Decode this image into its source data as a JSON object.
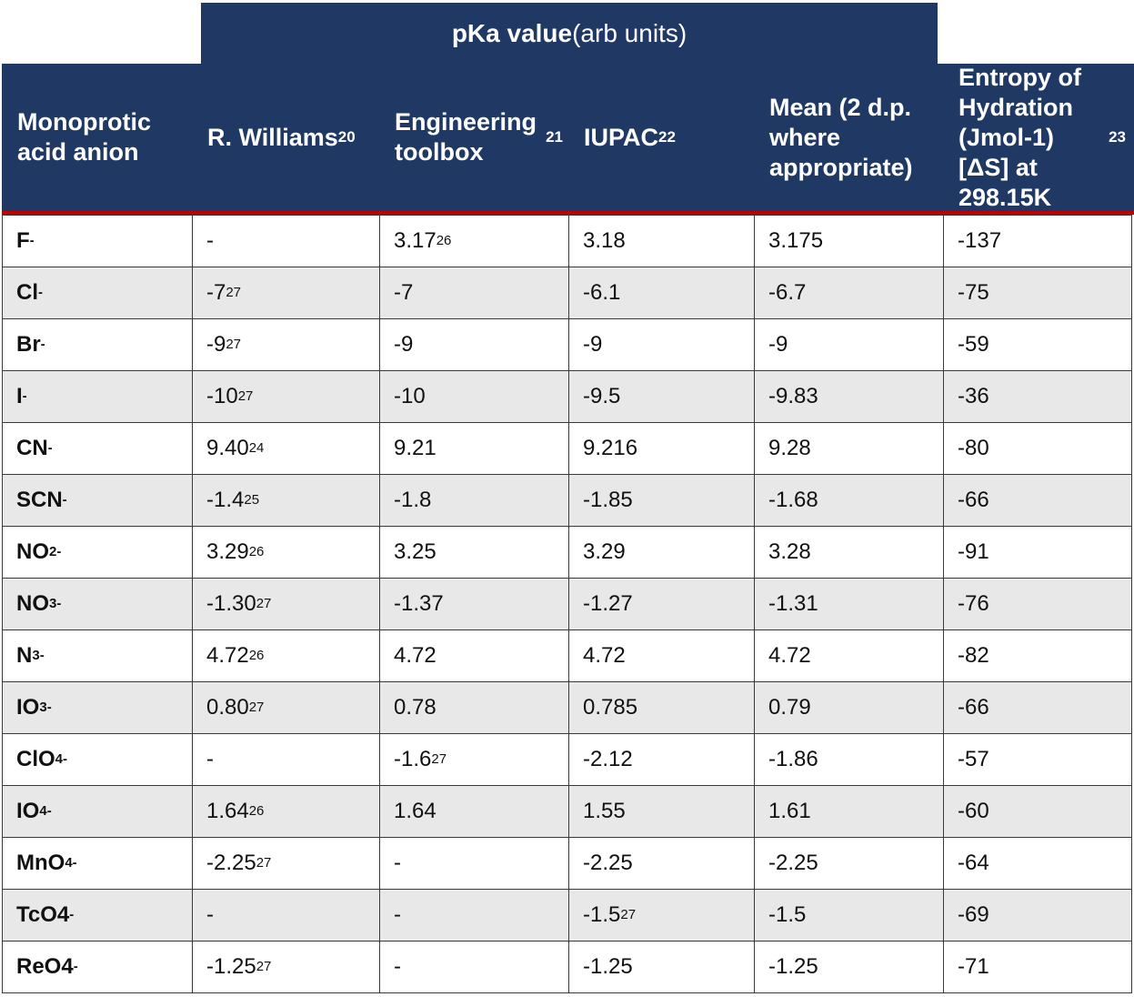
{
  "table": {
    "group_header": [
      {
        "bold": "pKa value"
      },
      " (arb units)"
    ],
    "columns": [
      [
        "Monoprotic acid anion"
      ],
      [
        "R. Williams",
        {
          "sup": "20"
        }
      ],
      [
        "Engineering toolbox",
        {
          "sup": "21"
        }
      ],
      [
        "IUPAC",
        {
          "sup": "22"
        }
      ],
      [
        "Mean (2 d.p. where appropriate)"
      ],
      [
        "Entropy of Hydration (Jmol-1) [ΔS] at 298.15K",
        {
          "sup": "23"
        }
      ]
    ],
    "rows": [
      [
        [
          "F",
          {
            "sup": "-"
          }
        ],
        [
          "-"
        ],
        [
          "3.17",
          {
            "sup": "26"
          }
        ],
        [
          "3.18"
        ],
        [
          "3.175"
        ],
        [
          "-137"
        ]
      ],
      [
        [
          "Cl",
          {
            "sup": "-"
          }
        ],
        [
          "-7",
          {
            "sup": "27"
          }
        ],
        [
          "-7"
        ],
        [
          "-6.1"
        ],
        [
          "-6.7"
        ],
        [
          "-75"
        ]
      ],
      [
        [
          "Br",
          {
            "sup": "-"
          }
        ],
        [
          "-9",
          {
            "sup": "27"
          }
        ],
        [
          "-9"
        ],
        [
          "-9"
        ],
        [
          "-9"
        ],
        [
          "-59"
        ]
      ],
      [
        [
          "I",
          {
            "sup": "-"
          }
        ],
        [
          "-10",
          {
            "sup": "27"
          }
        ],
        [
          "-10"
        ],
        [
          "-9.5"
        ],
        [
          "-9.83"
        ],
        [
          "-36"
        ]
      ],
      [
        [
          "CN",
          {
            "sup": "-"
          }
        ],
        [
          "9.40",
          {
            "sup": "24"
          }
        ],
        [
          "9.21"
        ],
        [
          "9.216"
        ],
        [
          "9.28"
        ],
        [
          "-80"
        ]
      ],
      [
        [
          "SCN",
          {
            "sup": "-"
          }
        ],
        [
          "-1.4",
          {
            "sup": "25"
          }
        ],
        [
          "-1.8"
        ],
        [
          "-1.85"
        ],
        [
          "-1.68"
        ],
        [
          "-66"
        ]
      ],
      [
        [
          "NO",
          {
            "sub": "2"
          },
          {
            "sup": "-"
          }
        ],
        [
          "3.29",
          {
            "sup": "26"
          }
        ],
        [
          "3.25"
        ],
        [
          "3.29"
        ],
        [
          "3.28"
        ],
        [
          "-91"
        ]
      ],
      [
        [
          "NO",
          {
            "sub": "3"
          },
          {
            "sup": "-"
          }
        ],
        [
          "-1.30",
          {
            "sup": "27"
          }
        ],
        [
          "-1.37"
        ],
        [
          "-1.27"
        ],
        [
          "-1.31"
        ],
        [
          "-76"
        ]
      ],
      [
        [
          "N",
          {
            "sub": "3"
          },
          {
            "sup": "-"
          }
        ],
        [
          "4.72",
          {
            "sup": "26"
          }
        ],
        [
          "4.72"
        ],
        [
          "4.72"
        ],
        [
          "4.72"
        ],
        [
          "-82"
        ]
      ],
      [
        [
          "IO",
          {
            "sub": "3"
          },
          {
            "sup": "-"
          }
        ],
        [
          "0.80",
          {
            "sup": "27"
          }
        ],
        [
          "0.78"
        ],
        [
          "0.785"
        ],
        [
          "0.79"
        ],
        [
          "-66"
        ]
      ],
      [
        [
          "ClO",
          {
            "sub": "4"
          },
          {
            "sup": "-"
          }
        ],
        [
          "-"
        ],
        [
          "-1.6",
          {
            "sup": "27"
          }
        ],
        [
          "-2.12"
        ],
        [
          "-1.86"
        ],
        [
          "-57"
        ]
      ],
      [
        [
          "IO",
          {
            "sub": "4"
          },
          {
            "sup": "-"
          }
        ],
        [
          "1.64",
          {
            "sup": "26"
          }
        ],
        [
          "1.64"
        ],
        [
          "1.55"
        ],
        [
          "1.61"
        ],
        [
          "-60"
        ]
      ],
      [
        [
          "MnO",
          {
            "sub": "4"
          },
          {
            "sup": "-"
          }
        ],
        [
          "-2.25",
          {
            "sup": "27"
          }
        ],
        [
          "-"
        ],
        [
          "-2.25"
        ],
        [
          "-2.25"
        ],
        [
          "-64"
        ]
      ],
      [
        [
          "TcO4",
          {
            "sup": "-"
          }
        ],
        [
          "-"
        ],
        [
          "-"
        ],
        [
          "-1.5",
          {
            "sup": "27"
          }
        ],
        [
          "-1.5"
        ],
        [
          "-69"
        ]
      ],
      [
        [
          "ReO4",
          {
            "sup": "-"
          }
        ],
        [
          "-1.25",
          {
            "sup": "27"
          }
        ],
        [
          "-"
        ],
        [
          "-1.25"
        ],
        [
          "-1.25"
        ],
        [
          "-71"
        ]
      ]
    ]
  }
}
